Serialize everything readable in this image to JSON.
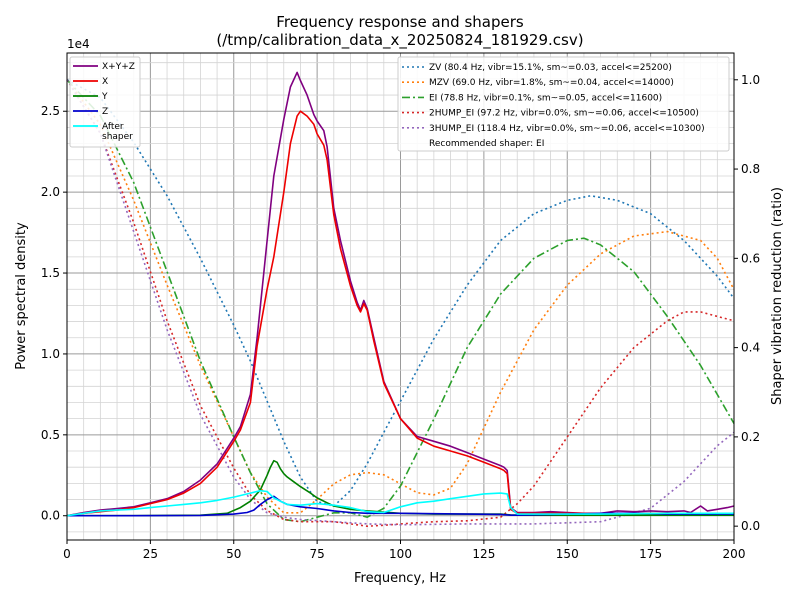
{
  "chart_data": {
    "type": "line",
    "title": "Frequency response and shapers",
    "subtitle": "(/tmp/calibration_data_x_20250824_181929.csv)",
    "xlabel": "Frequency, Hz",
    "ylabel": "Power spectral density",
    "y2label": "Shaper vibration reduction (ratio)",
    "exponent_label": "1e4",
    "xlim": [
      0,
      200
    ],
    "ylim": [
      -1500,
      28600
    ],
    "y2lim": [
      -0.031,
      1.06
    ],
    "x_ticks": [
      "0",
      "25",
      "50",
      "75",
      "100",
      "125",
      "150",
      "175",
      "200"
    ],
    "y_ticks": [
      "0.0",
      "0.5",
      "1.0",
      "1.5",
      "2.0",
      "2.5"
    ],
    "y2_ticks": [
      "0.0",
      "0.2",
      "0.4",
      "0.6",
      "0.8",
      "1.0"
    ],
    "grid": true,
    "psd_legend_placement": "upper-left",
    "shaper_legend_placement": "upper-right",
    "recommended_text": "Recommended shaper: EI",
    "psd_series": [
      {
        "name": "X+Y+Z",
        "color": "#800080",
        "width": 1.6,
        "x": [
          0,
          5,
          10,
          15,
          20,
          25,
          30,
          35,
          40,
          45,
          50,
          52,
          55,
          57,
          60,
          62,
          65,
          67,
          69,
          70,
          72,
          74,
          75,
          77,
          78,
          80,
          82,
          85,
          87,
          88,
          89,
          90,
          92,
          95,
          100,
          105,
          110,
          115,
          120,
          125,
          130,
          131,
          132,
          133,
          135,
          140,
          145,
          150,
          155,
          160,
          165,
          170,
          175,
          180,
          185,
          187,
          190,
          192,
          195,
          198,
          200
        ],
        "y": [
          0,
          200,
          350,
          450,
          550,
          800,
          1050,
          1500,
          2200,
          3200,
          4800,
          5500,
          7500,
          11000,
          17000,
          21000,
          24500,
          26500,
          27400,
          26900,
          26000,
          24800,
          24400,
          23800,
          22800,
          19000,
          17000,
          14500,
          13200,
          12700,
          13300,
          12800,
          11000,
          8300,
          6000,
          4900,
          4600,
          4300,
          3900,
          3500,
          3100,
          3000,
          2800,
          500,
          200,
          200,
          250,
          200,
          150,
          150,
          300,
          250,
          300,
          250,
          300,
          200,
          600,
          300,
          400,
          500,
          600
        ]
      },
      {
        "name": "X",
        "color": "#ee0000",
        "width": 1.6,
        "x": [
          0,
          5,
          10,
          15,
          20,
          25,
          30,
          35,
          40,
          45,
          50,
          52,
          55,
          57,
          60,
          62,
          65,
          67,
          69,
          70,
          72,
          74,
          75,
          77,
          78,
          80,
          82,
          85,
          87,
          88,
          89,
          90,
          92,
          95,
          100,
          105,
          110,
          115,
          120,
          125,
          130,
          131,
          132,
          133,
          135,
          140,
          150,
          160,
          170,
          180,
          190,
          200
        ],
        "y": [
          0,
          150,
          250,
          350,
          500,
          750,
          1000,
          1400,
          2000,
          3000,
          4600,
          5300,
          7000,
          10500,
          14000,
          16000,
          20000,
          23000,
          24700,
          25000,
          24700,
          24200,
          23600,
          22900,
          22000,
          18600,
          16500,
          14200,
          13000,
          12600,
          13100,
          12700,
          10800,
          8200,
          6000,
          4800,
          4300,
          4000,
          3700,
          3300,
          2900,
          2800,
          2600,
          400,
          150,
          150,
          150,
          150,
          150,
          150,
          150,
          150
        ]
      },
      {
        "name": "Y",
        "color": "#008000",
        "width": 1.6,
        "x": [
          0,
          20,
          40,
          48,
          52,
          55,
          58,
          60,
          61,
          62,
          63,
          64,
          65,
          66,
          68,
          70,
          73,
          75,
          78,
          80,
          85,
          90,
          100,
          110,
          120,
          130,
          133,
          135,
          150,
          165,
          180,
          200
        ],
        "y": [
          0,
          0,
          30,
          150,
          500,
          900,
          1600,
          2500,
          3000,
          3400,
          3300,
          2900,
          2600,
          2400,
          2100,
          1800,
          1400,
          1100,
          800,
          600,
          400,
          300,
          150,
          100,
          100,
          100,
          50,
          30,
          30,
          30,
          30,
          30
        ]
      },
      {
        "name": "Z",
        "color": "#0000cc",
        "width": 1.6,
        "x": [
          0,
          20,
          40,
          50,
          54,
          56,
          58,
          60,
          62,
          64,
          66,
          70,
          75,
          80,
          85,
          90,
          100,
          120,
          130,
          133,
          135,
          150,
          160,
          170,
          180,
          190,
          200
        ],
        "y": [
          0,
          0,
          20,
          100,
          200,
          350,
          700,
          1000,
          1200,
          900,
          700,
          550,
          450,
          300,
          200,
          150,
          150,
          100,
          80,
          30,
          30,
          100,
          150,
          150,
          100,
          100,
          100
        ]
      },
      {
        "name": "After\nshaper",
        "color": "#00ffff",
        "width": 1.6,
        "x": [
          0,
          5,
          10,
          15,
          20,
          25,
          30,
          35,
          40,
          45,
          50,
          55,
          58,
          60,
          62,
          64,
          66,
          70,
          75,
          80,
          85,
          90,
          95,
          100,
          105,
          110,
          115,
          120,
          125,
          130,
          132,
          133,
          135,
          145,
          160,
          180,
          200
        ],
        "y": [
          0,
          150,
          300,
          350,
          400,
          500,
          600,
          700,
          800,
          950,
          1150,
          1400,
          1550,
          1500,
          1100,
          900,
          700,
          650,
          750,
          650,
          500,
          250,
          200,
          550,
          800,
          900,
          1050,
          1200,
          1350,
          1400,
          1350,
          500,
          100,
          100,
          100,
          150,
          150
        ]
      }
    ],
    "shaper_series": [
      {
        "name": "ZV (80.4 Hz, vibr=15.1%, sm~=0.03, accel<=25200)",
        "color": "#1f77b4",
        "dash": "2,3",
        "x": [
          0,
          10,
          20,
          30,
          40,
          50,
          55,
          60,
          65,
          70,
          75,
          80,
          85,
          90,
          95,
          100,
          110,
          120,
          130,
          140,
          150,
          157,
          165,
          175,
          185,
          195,
          200
        ],
        "y": [
          1.0,
          0.96,
          0.86,
          0.74,
          0.6,
          0.45,
          0.37,
          0.28,
          0.19,
          0.11,
          0.055,
          0.045,
          0.08,
          0.14,
          0.21,
          0.28,
          0.42,
          0.54,
          0.64,
          0.7,
          0.73,
          0.74,
          0.73,
          0.7,
          0.64,
          0.56,
          0.51
        ]
      },
      {
        "name": "MZV (69.0 Hz, vibr=1.8%, sm~=0.04, accel<=14000)",
        "color": "#ff7f0e",
        "dash": "2,3",
        "x": [
          0,
          10,
          20,
          30,
          40,
          50,
          55,
          60,
          65,
          70,
          75,
          80,
          85,
          90,
          95,
          100,
          105,
          110,
          115,
          120,
          125,
          130,
          140,
          150,
          160,
          170,
          180,
          190,
          195,
          200
        ],
        "y": [
          1.0,
          0.9,
          0.73,
          0.54,
          0.36,
          0.2,
          0.12,
          0.065,
          0.03,
          0.03,
          0.06,
          0.095,
          0.115,
          0.12,
          0.115,
          0.095,
          0.075,
          0.07,
          0.085,
          0.14,
          0.22,
          0.3,
          0.44,
          0.54,
          0.61,
          0.65,
          0.66,
          0.64,
          0.6,
          0.53
        ]
      },
      {
        "name": "EI (78.8 Hz, vibr=0.1%, sm~=0.05, accel<=11600)",
        "color": "#2ca02c",
        "dash": "8,3,2,3",
        "x": [
          0,
          10,
          20,
          30,
          40,
          50,
          55,
          60,
          65,
          70,
          75,
          80,
          85,
          90,
          95,
          100,
          110,
          120,
          130,
          140,
          150,
          155,
          160,
          170,
          180,
          190,
          200
        ],
        "y": [
          1.0,
          0.92,
          0.77,
          0.57,
          0.37,
          0.2,
          0.12,
          0.05,
          0.015,
          0.01,
          0.02,
          0.03,
          0.03,
          0.02,
          0.04,
          0.09,
          0.24,
          0.4,
          0.52,
          0.6,
          0.64,
          0.645,
          0.63,
          0.57,
          0.47,
          0.36,
          0.23
        ]
      },
      {
        "name": "2HUMP_EI (97.2 Hz, vibr=0.0%, sm~=0.06, accel<=10500)",
        "color": "#d62728",
        "dash": "2,3",
        "x": [
          0,
          10,
          20,
          30,
          40,
          50,
          55,
          60,
          65,
          70,
          75,
          80,
          85,
          90,
          95,
          100,
          110,
          120,
          130,
          135,
          140,
          150,
          160,
          170,
          180,
          185,
          190,
          195,
          200
        ],
        "y": [
          1.0,
          0.88,
          0.68,
          0.46,
          0.27,
          0.13,
          0.07,
          0.035,
          0.015,
          0.01,
          0.01,
          0.01,
          0.005,
          0.0,
          0.002,
          0.005,
          0.01,
          0.012,
          0.02,
          0.05,
          0.09,
          0.2,
          0.31,
          0.4,
          0.46,
          0.48,
          0.48,
          0.47,
          0.46
        ]
      },
      {
        "name": "3HUMP_EI (118.4 Hz, vibr=0.0%, sm~=0.06, accel<=10300)",
        "color": "#9467bd",
        "dash": "2,3",
        "x": [
          0,
          10,
          20,
          30,
          40,
          50,
          55,
          60,
          65,
          70,
          80,
          90,
          100,
          120,
          140,
          160,
          170,
          175,
          180,
          185,
          190,
          195,
          200
        ],
        "y": [
          1.0,
          0.88,
          0.66,
          0.44,
          0.25,
          0.11,
          0.06,
          0.03,
          0.02,
          0.015,
          0.01,
          0.005,
          0.003,
          0.005,
          0.005,
          0.01,
          0.03,
          0.04,
          0.07,
          0.1,
          0.14,
          0.18,
          0.21
        ]
      }
    ]
  }
}
